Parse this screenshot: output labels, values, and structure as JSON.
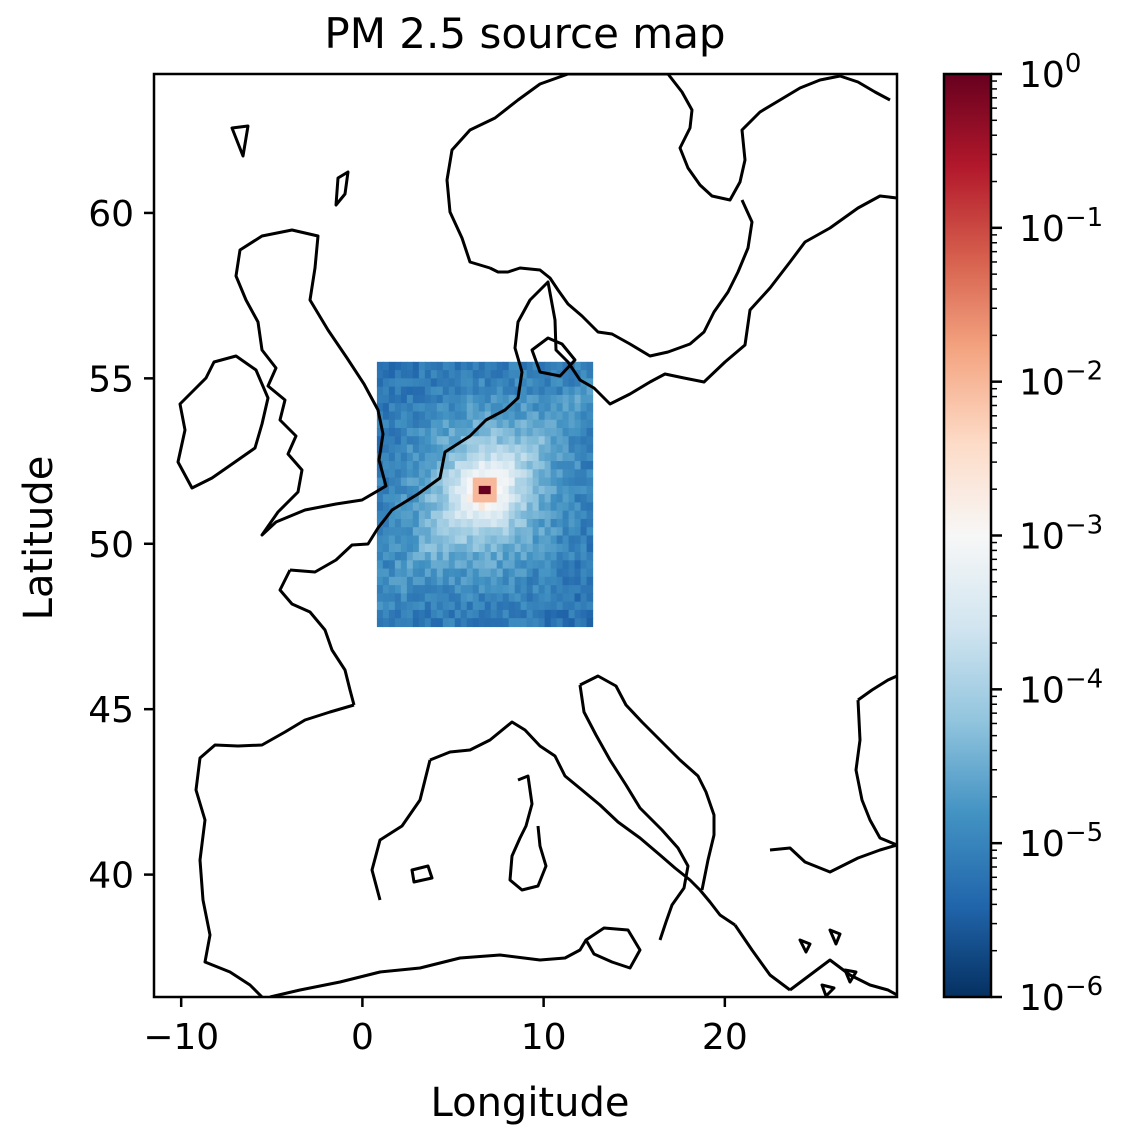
{
  "chart_data": {
    "type": "heatmap",
    "title": "PM 2.5 source map",
    "xlabel": "Longitude",
    "ylabel": "Latitude",
    "xlim": [
      -11.5,
      29.5
    ],
    "ylim": [
      36.3,
      64.2
    ],
    "xticks": [
      -10,
      0,
      10,
      20
    ],
    "xtick_labels": [
      "−10",
      "0",
      "10",
      "20"
    ],
    "yticks": [
      40,
      45,
      50,
      55,
      60
    ],
    "ytick_labels": [
      "40",
      "45",
      "50",
      "55",
      "60"
    ],
    "grid": false,
    "colormap": "RdBu_r",
    "color_scale": "log",
    "colorbar": {
      "min": 1e-06,
      "max": 1,
      "ticks": [
        {
          "value": 1e-06,
          "base": "10",
          "exp": "−6"
        },
        {
          "value": 1e-05,
          "base": "10",
          "exp": "−5"
        },
        {
          "value": 0.0001,
          "base": "10",
          "exp": "−4"
        },
        {
          "value": 0.001,
          "base": "10",
          "exp": "−3"
        },
        {
          "value": 0.01,
          "base": "10",
          "exp": "−2"
        },
        {
          "value": 0.1,
          "base": "10",
          "exp": "−1"
        },
        {
          "value": 1,
          "base": "10",
          "exp": "0"
        }
      ]
    },
    "grid_extent": {
      "lon": [
        0.8,
        12.7
      ],
      "lat": [
        47.5,
        55.5
      ]
    },
    "peak": {
      "lon": 6.8,
      "lat": 51.6,
      "value": 1.0
    },
    "background_value": 1e-06
  },
  "colors": {
    "coastline": "#000000",
    "axes": "#000000",
    "colormap_stops": [
      "#053061",
      "#2166ac",
      "#4393c3",
      "#92c5de",
      "#d1e5f0",
      "#f7f7f7",
      "#fddbc7",
      "#f4a582",
      "#d6604d",
      "#b2182b",
      "#67001f"
    ]
  }
}
